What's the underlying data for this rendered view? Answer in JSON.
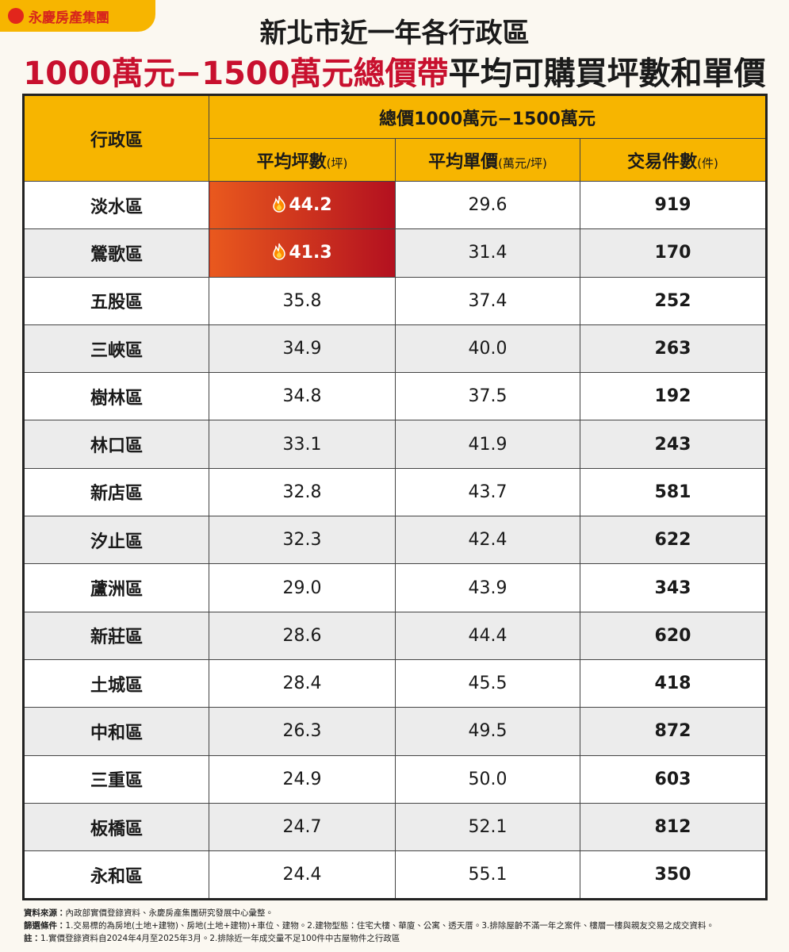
{
  "logo": "永慶房產集團",
  "header": {
    "title": "新北市近一年各行政區",
    "subtitle_highlight": "1000萬元−1500萬元總價帶",
    "subtitle_rest": "平均可購買坪數和單價"
  },
  "table": {
    "district_header": "行政區",
    "group_header": "總價1000萬元−1500萬元",
    "columns": [
      {
        "name": "平均坪數",
        "unit": "(坪)"
      },
      {
        "name": "平均單價",
        "unit": "(萬元/坪)"
      },
      {
        "name": "交易件數",
        "unit": "(件)"
      }
    ],
    "rows": [
      [
        "淡水區",
        "44.2",
        "29.6",
        "919"
      ],
      [
        "鶯歌區",
        "41.3",
        "31.4",
        "170"
      ],
      [
        "五股區",
        "35.8",
        "37.4",
        "252"
      ],
      [
        "三峽區",
        "34.9",
        "40.0",
        "263"
      ],
      [
        "樹林區",
        "34.8",
        "37.5",
        "192"
      ],
      [
        "林口區",
        "33.1",
        "41.9",
        "243"
      ],
      [
        "新店區",
        "32.8",
        "43.7",
        "581"
      ],
      [
        "汐止區",
        "32.3",
        "42.4",
        "622"
      ],
      [
        "蘆洲區",
        "29.0",
        "43.9",
        "343"
      ],
      [
        "新莊區",
        "28.6",
        "44.4",
        "620"
      ],
      [
        "土城區",
        "28.4",
        "45.5",
        "418"
      ],
      [
        "中和區",
        "26.3",
        "49.5",
        "872"
      ],
      [
        "三重區",
        "24.9",
        "50.0",
        "603"
      ],
      [
        "板橋區",
        "24.7",
        "52.1",
        "812"
      ],
      [
        "永和區",
        "24.4",
        "55.1",
        "350"
      ]
    ]
  },
  "notes": [
    {
      "label": "資料來源：",
      "text": "內政部實價登錄資料、永慶房產集團研究發展中心彙整。"
    },
    {
      "label": "篩選條件：",
      "text": "1.交易標的為房地(土地+建物)、房地(土地+建物)+車位、建物。2.建物型態：住宅大樓、華廈、公寓、透天厝。3.排除屋齡不滿一年之案件、樓層一樓與親友交易之成交資料。"
    },
    {
      "label": "註：",
      "text": "1.實價登錄資料自2024年4月至2025年3月。2.排除近一年成交量不足100件中古屋物件之行政區"
    }
  ]
}
